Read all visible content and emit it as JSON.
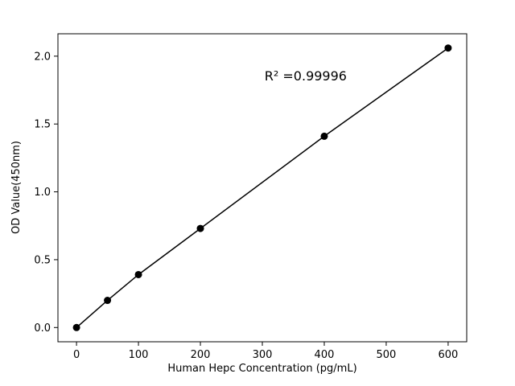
{
  "chart_data": {
    "type": "line",
    "series": [
      {
        "name": "standard-curve",
        "x": [
          0,
          50,
          100,
          200,
          400,
          600
        ],
        "y": [
          0.0,
          0.2,
          0.39,
          0.73,
          1.41,
          2.06
        ],
        "marker": "circle",
        "color": "#000000"
      }
    ],
    "title": "",
    "xlabel": "Human Hepc Concentration (pg/mL)",
    "ylabel": "OD Value(450nm)",
    "xlim": [
      -30,
      630
    ],
    "ylim": [
      -0.105,
      2.165
    ],
    "xticks": [
      0,
      100,
      200,
      300,
      400,
      500,
      600
    ],
    "xtick_labels": [
      "0",
      "100",
      "200",
      "300",
      "400",
      "500",
      "600"
    ],
    "yticks": [
      0.0,
      0.5,
      1.0,
      1.5,
      2.0
    ],
    "ytick_labels": [
      "0.0",
      "0.5",
      "1.0",
      "1.5",
      "2.0"
    ],
    "grid": false,
    "legend": "none",
    "annotation": {
      "text": "R² =0.99996",
      "x": 370,
      "y": 1.82
    }
  },
  "colors": {
    "background": "#ffffff",
    "foreground": "#000000"
  }
}
